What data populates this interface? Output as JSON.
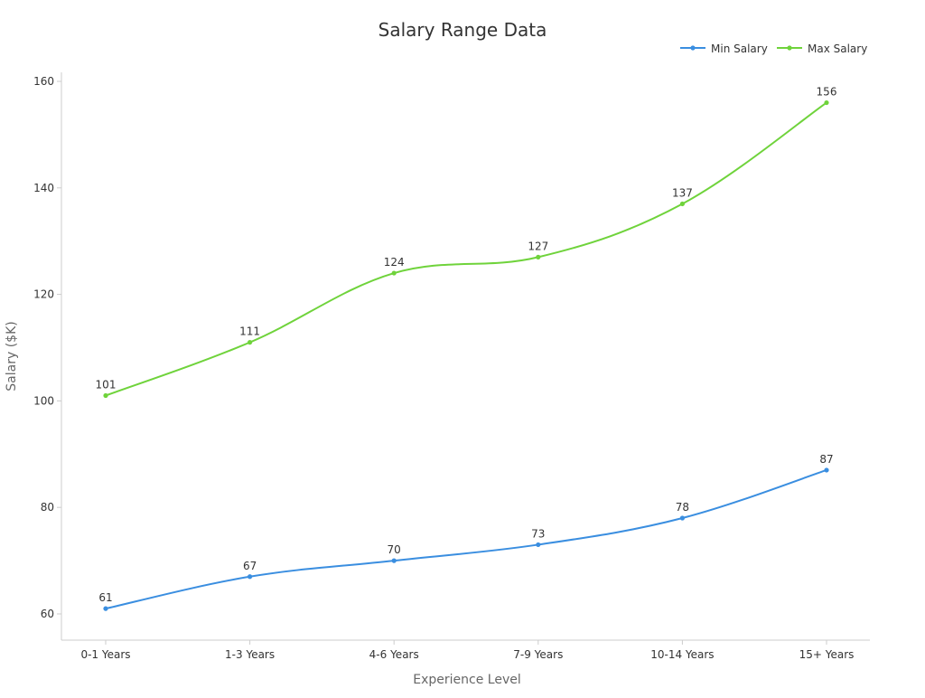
{
  "chart_data": {
    "type": "line",
    "title": "Salary Range Data",
    "xlabel": "Experience Level",
    "ylabel": "Salary ($K)",
    "categories": [
      "0-1 Years",
      "1-3 Years",
      "4-6 Years",
      "7-9 Years",
      "10-14 Years",
      "15+ Years"
    ],
    "series": [
      {
        "name": "Min Salary",
        "color": "#3a8ee0",
        "values": [
          61,
          67,
          70,
          73,
          78,
          87
        ]
      },
      {
        "name": "Max Salary",
        "color": "#6fd33b",
        "values": [
          101,
          111,
          124,
          127,
          137,
          156
        ]
      }
    ],
    "ylim": [
      55,
      162
    ],
    "yticks": [
      60,
      80,
      100,
      120,
      140,
      160
    ],
    "grid": false,
    "legend_position": "top-right",
    "smooth": true,
    "data_labels": true
  }
}
